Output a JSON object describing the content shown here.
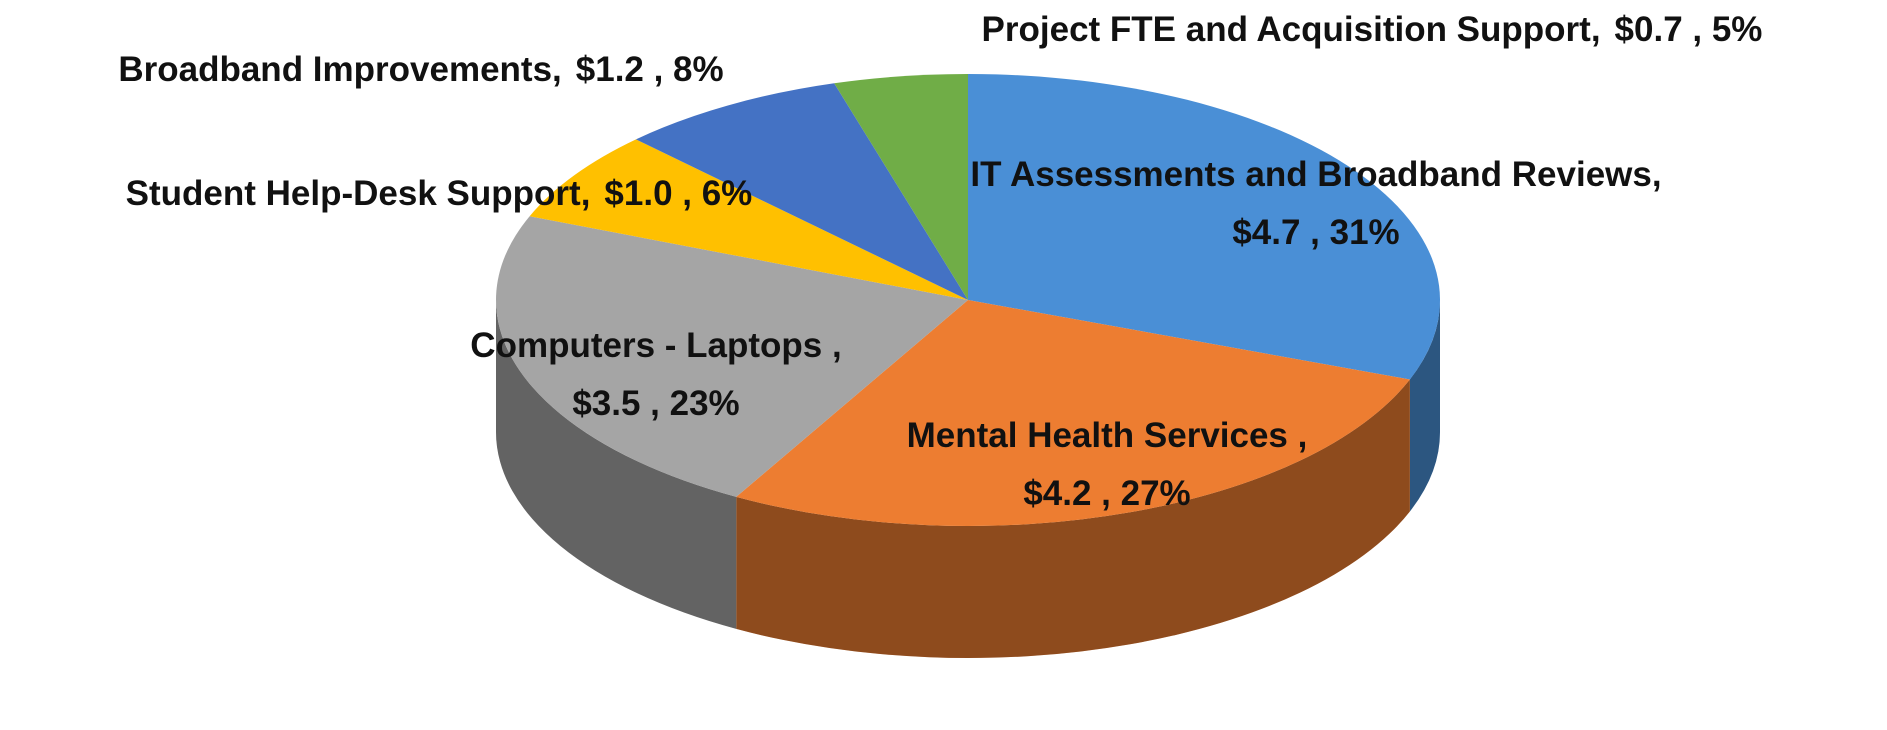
{
  "chart_data": {
    "type": "pie3d",
    "categories": [
      "IT Assessments and Broadband Reviews,",
      "Mental Health Services ,",
      "Computers - Laptops ,",
      "Student Help-Desk Support,",
      "Broadband Improvements,",
      "Project FTE and Acquisition Support,"
    ],
    "values": [
      4.7,
      4.2,
      3.5,
      1.0,
      1.2,
      0.7
    ],
    "value_labels": [
      "$4.7 , 31%",
      "$4.2 , 27%",
      "$3.5 , 23%",
      "$1.0 , 6%",
      "$1.2 , 8%",
      "$0.7 , 5%"
    ],
    "colors": [
      "#4a8fd6",
      "#ed7d31",
      "#a5a5a5",
      "#ffc000",
      "#4472c4",
      "#70ad47"
    ]
  }
}
